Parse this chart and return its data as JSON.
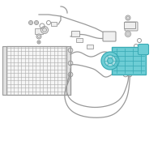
{
  "background_color": "#ffffff",
  "lc": "#999999",
  "lc2": "#aaaaaa",
  "cf": "#6dcdd5",
  "cf_edge": "#3aabb5",
  "fig_width": 2.0,
  "fig_height": 2.0,
  "dpi": 100
}
